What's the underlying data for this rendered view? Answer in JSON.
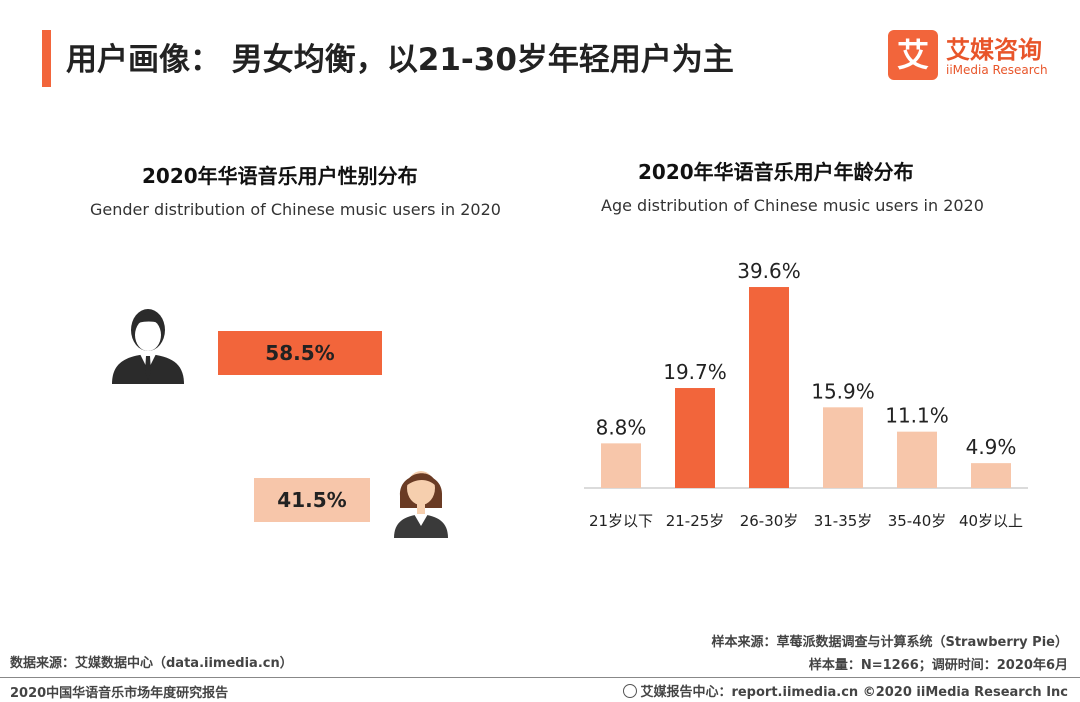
{
  "header": {
    "title": "用户画像： 男女均衡，以21-30岁年轻用户为主"
  },
  "logo": {
    "mark": "艾",
    "name_cn": "艾媒咨询",
    "name_en": "iiMedia Research"
  },
  "gender_chart": {
    "title": "2020年华语音乐用户性别分布",
    "subtitle": "Gender distribution of Chinese music users in 2020",
    "male_label": "58.5%",
    "female_label": "41.5%"
  },
  "age_chart": {
    "title": "2020年华语音乐用户年龄分布",
    "subtitle": "Age distribution of Chinese music users in 2020"
  },
  "chart_data": [
    {
      "type": "bar",
      "title": "2020年华语音乐用户性别分布",
      "subtitle": "Gender distribution of Chinese music users in 2020",
      "categories": [
        "男",
        "女"
      ],
      "values": [
        58.5,
        41.5
      ],
      "value_labels": [
        "58.5%",
        "41.5%"
      ],
      "orientation": "horizontal",
      "xlabel": "",
      "ylabel": ""
    },
    {
      "type": "bar",
      "title": "2020年华语音乐用户年龄分布",
      "subtitle": "Age distribution of Chinese music users in 2020",
      "categories": [
        "21岁以下",
        "21-25岁",
        "26-30岁",
        "31-35岁",
        "35-40岁",
        "40岁以上"
      ],
      "values": [
        8.8,
        19.7,
        39.6,
        15.9,
        11.1,
        4.9
      ],
      "value_labels": [
        "8.8%",
        "19.7%",
        "39.6%",
        "15.9%",
        "11.1%",
        "4.9%"
      ],
      "highlighted": [
        false,
        true,
        true,
        false,
        false,
        false
      ],
      "ylim": [
        0,
        40
      ],
      "xlabel": "",
      "ylabel": ""
    }
  ],
  "colors": {
    "accent": "#f2653b",
    "accent_light": "#f7c6aa",
    "text": "#222222"
  },
  "footer": {
    "sample_source": "样本来源：草莓派数据调查与计算系统（Strawberry Pie）",
    "sample_size": "样本量：N=1266；调研时间：2020年6月",
    "data_source": "数据来源：艾媒数据中心（data.iimedia.cn）",
    "report_name": "2020中国华语音乐市场年度研究报告",
    "report_center": "艾媒报告中心：report.iimedia.cn  ©2020  iiMedia Research  Inc"
  }
}
